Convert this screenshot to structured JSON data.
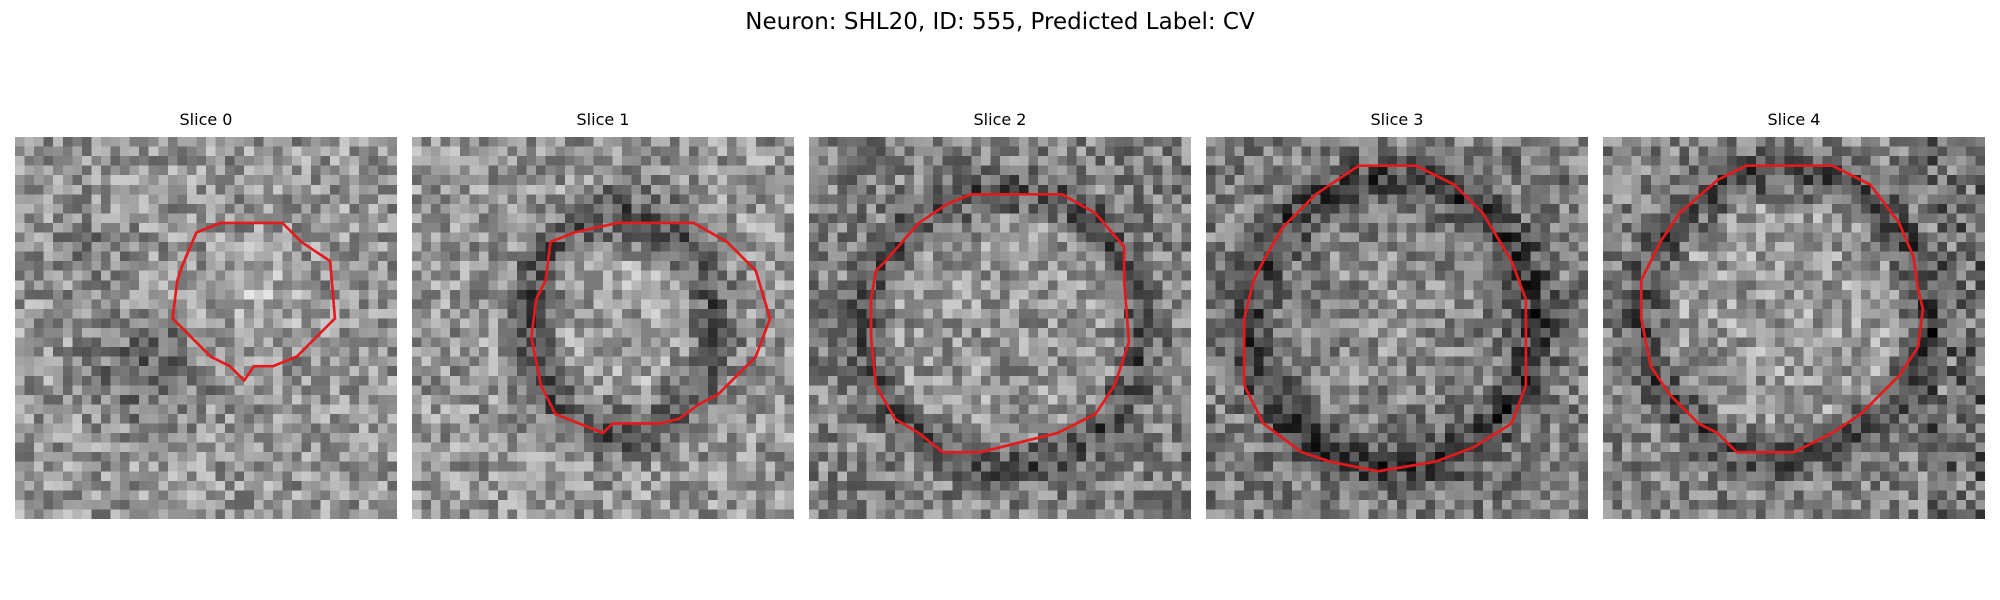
{
  "figure": {
    "title": "Neuron: SHL20, ID: 555, Predicted Label: CV"
  },
  "colors": {
    "contour": "#e41a1c"
  },
  "panels": [
    {
      "title": "Slice 0",
      "image": "grayscale-em-patch"
    },
    {
      "title": "Slice 1",
      "image": "grayscale-em-patch"
    },
    {
      "title": "Slice 2",
      "image": "grayscale-em-patch"
    },
    {
      "title": "Slice 3",
      "image": "grayscale-em-patch"
    },
    {
      "title": "Slice 4",
      "image": "grayscale-em-patch"
    }
  ]
}
